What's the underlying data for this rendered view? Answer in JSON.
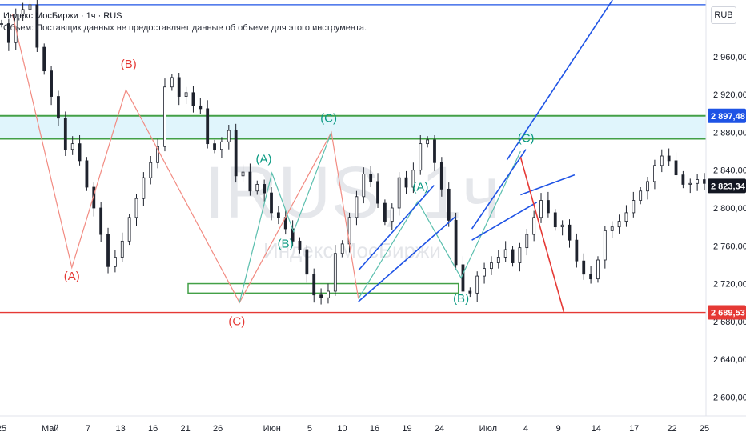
{
  "legend": {
    "symbol_line": "Индекс МосБиржи · 1ч · RUS",
    "volume_note": "Объем: Поставщик данных не предоставляет данные об объеме для этого инструмента."
  },
  "watermark": {
    "ticker": "IRUS, 1ч",
    "name": "Индекс МосБиржи"
  },
  "currency_label": "RUB",
  "colors": {
    "bull": "#26a69a",
    "bear": "#ef5350",
    "candle": "#1e222d",
    "wave_red": "#e53935",
    "wave_teal": "#089981",
    "zone_green": "#43a047",
    "trend_blue": "#1e53e5",
    "support_red": "#e53935",
    "wave_path_red": "#f28b82",
    "wave_path_teal": "#5bbfae",
    "zone_fill": "#e0f5fc"
  },
  "chart_data": {
    "type": "candlestick",
    "y_axis": {
      "ylim": [
        2580,
        3020
      ],
      "ticks": [
        "2 960,00",
        "2 920,00",
        "2 880,00",
        "2 840,00",
        "2 800,00",
        "2 760,00",
        "2 720,00",
        "2 680,00",
        "2 640,00",
        "2 600,00"
      ],
      "tick_values": [
        2960,
        2920,
        2880,
        2840,
        2800,
        2760,
        2720,
        2680,
        2640,
        2600
      ]
    },
    "x_axis": {
      "ticks": [
        "25",
        "Май",
        "7",
        "13",
        "16",
        "21",
        "26",
        "Июн",
        "5",
        "10",
        "16",
        "19",
        "24",
        "Июл",
        "4",
        "9",
        "14",
        "17",
        "22",
        "25"
      ],
      "tick_index": [
        0,
        9,
        16,
        22,
        28,
        34,
        40,
        50,
        57,
        63,
        69,
        75,
        81,
        90,
        97,
        103,
        110,
        117,
        124,
        130
      ],
      "bar_count": 131
    },
    "price_labels": [
      {
        "value": 2897.48,
        "text": "2 897,48",
        "color": "#1e53e5"
      },
      {
        "value": 2823.34,
        "text": "2 823,34",
        "color": "#131722"
      },
      {
        "value": 2689.53,
        "text": "2 689,53",
        "color": "#e53935"
      }
    ],
    "horizontal_lines": [
      {
        "value": 3015,
        "color": "#1e53e5"
      },
      {
        "value": 2823.34,
        "color": "#b2b5be"
      },
      {
        "value": 2689.53,
        "color": "#e53935"
      }
    ],
    "resistance_zone": {
      "from": 2873,
      "to": 2897.48
    },
    "support_zone": {
      "x_from": 34.5,
      "x_to": 84.5,
      "from": 2710,
      "to": 2720
    },
    "candles_close": [
      2995,
      2975,
      3005,
      3010,
      3015,
      2970,
      2945,
      2918,
      2895,
      2862,
      2868,
      2850,
      2822,
      2800,
      2772,
      2738,
      2748,
      2765,
      2790,
      2810,
      2832,
      2848,
      2865,
      2928,
      2938,
      2918,
      2922,
      2908,
      2905,
      2868,
      2862,
      2870,
      2882,
      2834,
      2838,
      2818,
      2825,
      2816,
      2795,
      2790,
      2778,
      2765,
      2756,
      2730,
      2708,
      2705,
      2712,
      2752,
      2762,
      2790,
      2812,
      2836,
      2828,
      2805,
      2786,
      2800,
      2832,
      2822,
      2840,
      2868,
      2872,
      2848,
      2820,
      2787,
      2740,
      2712,
      2710,
      2728,
      2736,
      2742,
      2748,
      2756,
      2742,
      2758,
      2772,
      2790,
      2808,
      2795,
      2780,
      2782,
      2766,
      2744,
      2730,
      2725,
      2745,
      2776,
      2780,
      2786,
      2795,
      2808,
      2818,
      2828,
      2845,
      2855,
      2850,
      2835,
      2825,
      2826,
      2830,
      2826
    ],
    "line_series": [
      {
        "name": "",
        "color": "#1e53e5",
        "points": [
          [
            93.5,
            2851
          ],
          [
            113,
            3020
          ]
        ]
      },
      {
        "name": "",
        "color": "#e53935",
        "points": [
          [
            96,
            2854
          ],
          [
            104,
            2690
          ]
        ]
      }
    ],
    "trendlines": [
      {
        "color": "#1e53e5",
        "points": [
          [
            66,
            2701
          ],
          [
            84,
            2791
          ]
        ]
      },
      {
        "color": "#1e53e5",
        "points": [
          [
            66,
            2734
          ],
          [
            80,
            2824
          ]
        ]
      },
      {
        "color": "#1e53e5",
        "points": [
          [
            87,
            2766
          ],
          [
            99,
            2806
          ]
        ]
      },
      {
        "color": "#1e53e5",
        "points": [
          [
            87,
            2778
          ],
          [
            97,
            2862
          ]
        ]
      },
      {
        "color": "#1e53e5",
        "points": [
          [
            96,
            2814
          ],
          [
            106,
            2835
          ]
        ]
      }
    ],
    "wave_paths": [
      {
        "color": "#f28b82",
        "points": [
          [
            2,
            3005
          ],
          [
            13,
            2737
          ],
          [
            23,
            2925
          ],
          [
            44,
            2700
          ],
          [
            61,
            2880
          ],
          [
            66,
            2704
          ]
        ]
      },
      {
        "color": "#5bbfae",
        "points": [
          [
            44,
            2700
          ],
          [
            50,
            2837
          ],
          [
            54,
            2775
          ],
          [
            61,
            2880
          ]
        ]
      },
      {
        "color": "#5bbfae",
        "points": [
          [
            66,
            2704
          ],
          [
            77,
            2807
          ],
          [
            85,
            2726
          ],
          [
            96,
            2860
          ]
        ]
      }
    ],
    "wave_labels": [
      {
        "text": "(A)",
        "x": 13,
        "value": 2724,
        "color": "#e53935"
      },
      {
        "text": "(B)",
        "x": 23.5,
        "value": 2948,
        "color": "#e53935"
      },
      {
        "text": "(C)",
        "x": 43.5,
        "value": 2676,
        "color": "#e53935"
      },
      {
        "text": "(A)",
        "x": 48.5,
        "value": 2848,
        "color": "#089981"
      },
      {
        "text": "(B)",
        "x": 52.5,
        "value": 2758,
        "color": "#089981"
      },
      {
        "text": "(C)",
        "x": 60.5,
        "value": 2891,
        "color": "#089981"
      },
      {
        "text": "(A)",
        "x": 77.5,
        "value": 2818,
        "color": "#089981"
      },
      {
        "text": "(B)",
        "x": 85,
        "value": 2700,
        "color": "#089981"
      },
      {
        "text": "(C)",
        "x": 97,
        "value": 2870,
        "color": "#089981"
      }
    ]
  }
}
